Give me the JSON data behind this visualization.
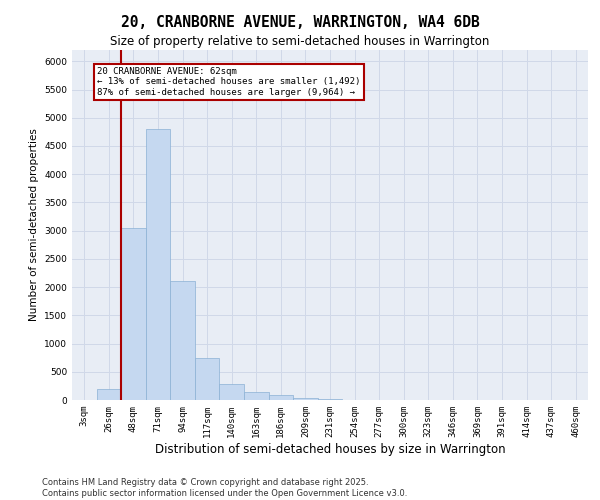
{
  "title": "20, CRANBORNE AVENUE, WARRINGTON, WA4 6DB",
  "subtitle": "Size of property relative to semi-detached houses in Warrington",
  "xlabel": "Distribution of semi-detached houses by size in Warrington",
  "ylabel": "Number of semi-detached properties",
  "categories": [
    "3sqm",
    "26sqm",
    "48sqm",
    "71sqm",
    "94sqm",
    "117sqm",
    "140sqm",
    "163sqm",
    "186sqm",
    "209sqm",
    "231sqm",
    "254sqm",
    "277sqm",
    "300sqm",
    "323sqm",
    "346sqm",
    "369sqm",
    "391sqm",
    "414sqm",
    "437sqm",
    "460sqm"
  ],
  "values": [
    0,
    200,
    3050,
    4800,
    2100,
    750,
    280,
    150,
    80,
    40,
    15,
    8,
    4,
    2,
    1,
    1,
    0,
    0,
    0,
    0,
    0
  ],
  "bar_color": "#c5d8f0",
  "bar_edge_color": "#8ab0d4",
  "grid_color": "#d0d8e8",
  "bg_color": "#e8edf5",
  "red_line_x": 1.5,
  "annotation_text": "20 CRANBORNE AVENUE: 62sqm\n← 13% of semi-detached houses are smaller (1,492)\n87% of semi-detached houses are larger (9,964) →",
  "annotation_box_color": "#aa0000",
  "ylim": [
    0,
    6200
  ],
  "yticks": [
    0,
    500,
    1000,
    1500,
    2000,
    2500,
    3000,
    3500,
    4000,
    4500,
    5000,
    5500,
    6000
  ],
  "footnote": "Contains HM Land Registry data © Crown copyright and database right 2025.\nContains public sector information licensed under the Open Government Licence v3.0.",
  "title_fontsize": 10.5,
  "subtitle_fontsize": 8.5,
  "xlabel_fontsize": 8.5,
  "ylabel_fontsize": 7.5,
  "tick_fontsize": 6.5,
  "footnote_fontsize": 6.0
}
